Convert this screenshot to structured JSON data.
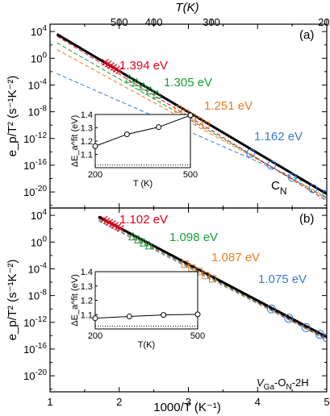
{
  "colors": {
    "red": "#e0001a",
    "green": "#1a9e3a",
    "orange": "#e87b22",
    "blue": "#3a78d8",
    "black": "#000000"
  },
  "top_axis": {
    "title": "T(K)",
    "ticks": [
      {
        "label": "500",
        "T": 500
      },
      {
        "label": "400",
        "T": 400
      },
      {
        "label": "300",
        "T": 300
      },
      {
        "label": "200",
        "T": 200
      }
    ]
  },
  "x_axis": {
    "title": "1000/T (K⁻¹)",
    "range": [
      1,
      5
    ],
    "ticks": [
      1,
      2,
      3,
      4,
      5
    ],
    "tick_labels": [
      "1",
      "2",
      "3",
      "4",
      "5"
    ]
  },
  "y_axis": {
    "title": "e_p/T² (s⁻¹K⁻²)",
    "scale": "log",
    "range_exponent": [
      -22,
      4
    ],
    "ticks": [
      {
        "exp": 4,
        "label": "10",
        "sup": "4"
      },
      {
        "exp": 0,
        "label": "10",
        "sup": "0"
      },
      {
        "exp": -4,
        "label": "10",
        "sup": "-4"
      },
      {
        "exp": -8,
        "label": "10",
        "sup": "-8"
      },
      {
        "exp": -12,
        "label": "10",
        "sup": "-12"
      },
      {
        "exp": -16,
        "label": "10",
        "sup": "-16"
      },
      {
        "exp": -20,
        "label": "10",
        "sup": "-20"
      }
    ]
  },
  "panels": [
    {
      "tag": "(a)",
      "defect": {
        "main": "C",
        "sub": "N"
      },
      "energies": [
        {
          "text": "1.394 eV",
          "color": "red"
        },
        {
          "text": "1.305 eV",
          "color": "green"
        },
        {
          "text": "1.251 eV",
          "color": "orange"
        },
        {
          "text": "1.162 eV",
          "color": "blue"
        }
      ],
      "inset": {
        "xlabel": "T (K)",
        "ylabel": "ΔE_a^fit (eV)",
        "xticks": [
          "200",
          "500"
        ],
        "yticks": [
          "1.4",
          "1.3",
          "1.2",
          "1.1",
          "1.0"
        ]
      }
    },
    {
      "tag": "(b)",
      "defect": {
        "main": "V",
        "sub1": "Ga",
        "mid": "-O",
        "sub2": "N",
        "tail": "-2H"
      },
      "energies": [
        {
          "text": "1.102 eV",
          "color": "red"
        },
        {
          "text": "1.098 eV",
          "color": "green"
        },
        {
          "text": "1.087 eV",
          "color": "orange"
        },
        {
          "text": "1.075 eV",
          "color": "blue"
        }
      ],
      "inset": {
        "xlabel": "T(K)",
        "ylabel": "ΔE_a^fit (eV)",
        "xticks": [
          "200",
          "500"
        ],
        "yticks": [
          "1.4",
          "1.3",
          "1.2",
          "1.1",
          "1.0"
        ]
      }
    }
  ],
  "chart_data": [
    {
      "type": "line",
      "panel": "a",
      "x_axis_range": [
        1,
        5
      ],
      "y_axis": "log10 e_p/T^2",
      "y_range_exponent": [
        -22,
        4
      ],
      "fit_lines": [
        {
          "color": "black",
          "style": "solid",
          "energy": "total fit",
          "x": [
            1.1,
            5.0
          ],
          "log10y": [
            3.6,
            -20.3
          ]
        },
        {
          "color": "red",
          "style": "dashed",
          "energy": "1.394 eV",
          "x": [
            1.1,
            5.0
          ],
          "log10y": [
            3.3,
            -21.3
          ]
        },
        {
          "color": "green",
          "style": "dashed",
          "energy": "1.305 eV",
          "x": [
            1.1,
            5.0
          ],
          "log10y": [
            2.3,
            -21.0
          ]
        },
        {
          "color": "orange",
          "style": "dashed",
          "energy": "1.251 eV",
          "x": [
            1.1,
            5.0
          ],
          "log10y": [
            1.3,
            -20.8
          ]
        },
        {
          "color": "blue",
          "style": "dashed",
          "energy": "1.162 eV",
          "x": [
            1.1,
            5.0
          ],
          "log10y": [
            -2.3,
            -20.0
          ]
        }
      ],
      "markers": [
        {
          "color": "red",
          "shape": "x",
          "x": [
            1.8,
            1.84,
            1.88,
            1.92,
            1.96,
            2.0
          ],
          "log10y": [
            -0.6,
            -0.85,
            -1.1,
            -1.35,
            -1.6,
            -1.85
          ]
        },
        {
          "color": "green",
          "shape": "triangle",
          "x": [
            2.15,
            2.25,
            2.35,
            2.45,
            2.55
          ],
          "log10y": [
            -3.1,
            -3.65,
            -4.25,
            -4.85,
            -5.45
          ]
        },
        {
          "color": "orange",
          "shape": "square",
          "x": [
            2.85,
            2.95,
            3.05,
            3.15,
            3.25
          ],
          "log10y": [
            -7.6,
            -8.2,
            -8.8,
            -9.4,
            -10.0
          ]
        },
        {
          "color": "blue",
          "shape": "circle",
          "x": [
            3.9,
            4.2,
            4.5,
            4.8,
            5.0
          ],
          "log10y": [
            -14.2,
            -16.0,
            -17.8,
            -19.5,
            -20.3
          ]
        }
      ],
      "inset": {
        "T": [
          200,
          300,
          400,
          500
        ],
        "Ea": [
          1.162,
          1.251,
          1.305,
          1.394
        ],
        "xlim": [
          200,
          500
        ],
        "ylim": [
          1.0,
          1.4
        ],
        "dotted_reference": 1.02
      }
    },
    {
      "type": "line",
      "panel": "b",
      "x_axis_range": [
        1,
        5
      ],
      "y_axis": "log10 e_p/T^2",
      "y_range_exponent": [
        -22,
        4
      ],
      "fit_lines": [
        {
          "color": "black",
          "style": "solid",
          "energy": "total fit",
          "x": [
            1.7,
            5.0
          ],
          "log10y": [
            3.8,
            -14.2
          ]
        },
        {
          "color": "red",
          "style": "dashed",
          "energy": "1.102 eV",
          "x": [
            1.7,
            5.0
          ],
          "log10y": [
            3.8,
            -14.5
          ]
        },
        {
          "color": "green",
          "style": "dashed",
          "energy": "1.098 eV",
          "x": [
            1.7,
            5.0
          ],
          "log10y": [
            3.6,
            -14.6
          ]
        },
        {
          "color": "orange",
          "style": "dashed",
          "energy": "1.087 eV",
          "x": [
            1.7,
            5.0
          ],
          "log10y": [
            3.4,
            -14.6
          ]
        },
        {
          "color": "blue",
          "style": "dashed",
          "energy": "1.075 eV",
          "x": [
            1.7,
            5.0
          ],
          "log10y": [
            3.2,
            -14.6
          ]
        }
      ],
      "markers": [
        {
          "color": "red",
          "shape": "x",
          "x": [
            1.78,
            1.82,
            1.86,
            1.9,
            1.94,
            1.98,
            2.02
          ],
          "log10y": [
            3.4,
            3.2,
            2.95,
            2.75,
            2.5,
            2.3,
            2.05
          ]
        },
        {
          "color": "green",
          "shape": "triangle",
          "x": [
            2.2,
            2.28,
            2.36,
            2.44
          ],
          "log10y": [
            0.8,
            0.35,
            -0.1,
            -0.55
          ]
        },
        {
          "color": "orange",
          "shape": "square",
          "x": [
            2.95,
            3.05,
            3.15,
            3.25,
            3.35
          ],
          "log10y": [
            -3.3,
            -3.9,
            -4.4,
            -5.0,
            -5.5
          ]
        },
        {
          "color": "blue",
          "shape": "circle",
          "x": [
            4.2,
            4.45,
            4.7,
            4.9,
            5.0
          ],
          "log10y": [
            -10.0,
            -11.4,
            -12.8,
            -13.8,
            -14.3
          ]
        }
      ],
      "inset": {
        "T": [
          200,
          300,
          400,
          500
        ],
        "Ea": [
          1.075,
          1.087,
          1.098,
          1.102
        ],
        "xlim": [
          200,
          500
        ],
        "ylim": [
          1.0,
          1.4
        ],
        "dotted_reference": 1.02
      }
    }
  ]
}
